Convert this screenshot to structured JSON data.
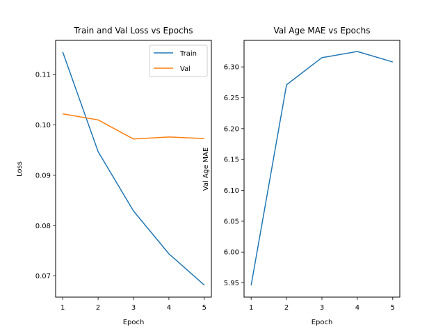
{
  "chart_data": [
    {
      "type": "line",
      "title": "Train and Val Loss vs Epochs",
      "xlabel": "Epoch",
      "ylabel": "Loss",
      "x": [
        1,
        2,
        3,
        4,
        5
      ],
      "xticks": [
        "1",
        "2",
        "3",
        "4",
        "5"
      ],
      "xlim": [
        0.8,
        5.2
      ],
      "ylim": [
        0.0658,
        0.1168
      ],
      "yticks": [
        "0.07",
        "0.08",
        "0.09",
        "0.10",
        "0.11"
      ],
      "grid": false,
      "legend": "top-right",
      "series": [
        {
          "name": "Train",
          "color": "#1f77b4",
          "values": [
            0.1145,
            0.0947,
            0.0829,
            0.0744,
            0.0682
          ]
        },
        {
          "name": "Val",
          "color": "#ff7f0e",
          "values": [
            0.1022,
            0.101,
            0.0972,
            0.0976,
            0.0973
          ]
        }
      ]
    },
    {
      "type": "line",
      "title": "Val Age MAE vs Epochs",
      "xlabel": "Epoch",
      "ylabel": "Val Age MAE",
      "x": [
        1,
        2,
        3,
        4,
        5
      ],
      "xticks": [
        "1",
        "2",
        "3",
        "4",
        "5"
      ],
      "xlim": [
        0.8,
        5.2
      ],
      "ylim": [
        5.927,
        6.343
      ],
      "yticks": [
        "5.95",
        "6.00",
        "6.05",
        "6.10",
        "6.15",
        "6.20",
        "6.25",
        "6.30"
      ],
      "grid": false,
      "legend": "none",
      "series": [
        {
          "color": "#1f77b4",
          "values": [
            5.946,
            6.271,
            6.315,
            6.325,
            6.308
          ]
        }
      ]
    }
  ]
}
